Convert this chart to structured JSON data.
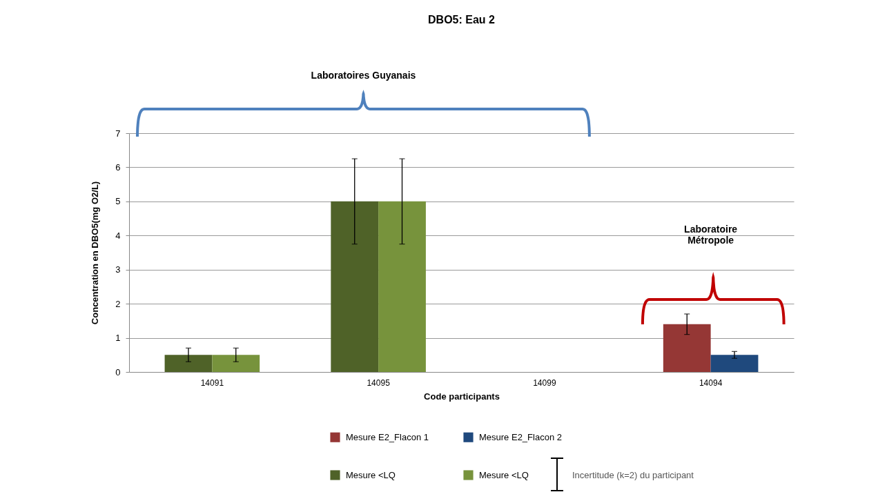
{
  "chart_data": {
    "type": "bar",
    "title": "DBO5: Eau 2",
    "xlabel": "Code participants",
    "ylabel": "Concentration en DBO5(mg O2/L)",
    "categories": [
      "14091",
      "14095",
      "14099",
      "14094"
    ],
    "series": [
      {
        "name": "Mesure E2_Flacon 1",
        "color": "#953735",
        "values": [
          null,
          null,
          null,
          1.4
        ],
        "errors": [
          null,
          null,
          null,
          0.3
        ]
      },
      {
        "name": "Mesure E2_Flacon 2",
        "color": "#1f497d",
        "values": [
          null,
          null,
          null,
          0.5
        ],
        "errors": [
          null,
          null,
          null,
          0.1
        ]
      },
      {
        "name": "Mesure <LQ",
        "color": "#4f6228",
        "values": [
          0.5,
          5,
          null,
          null
        ],
        "errors": [
          0.2,
          1.25,
          null,
          null
        ]
      },
      {
        "name": "Mesure <LQ",
        "color": "#77933c",
        "values": [
          0.5,
          5,
          null,
          null
        ],
        "errors": [
          0.2,
          1.25,
          null,
          null
        ]
      }
    ],
    "ylim": [
      0,
      7
    ],
    "yticks": [
      0,
      1,
      2,
      3,
      4,
      5,
      6,
      7
    ],
    "grid": "y",
    "legend": "bottom",
    "annotations": [
      "Laboratoires Guyanais",
      "Laboratoire Métropole",
      "Incertitude (k=2) du participant"
    ]
  }
}
